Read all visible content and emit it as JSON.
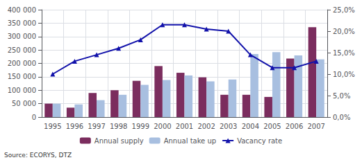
{
  "chart_data": {
    "type": "bar",
    "categories": [
      "1995",
      "1996",
      "1997",
      "1998",
      "1999",
      "2000",
      "2001",
      "2002",
      "2003",
      "2004",
      "2005",
      "2006",
      "2007"
    ],
    "series": [
      {
        "name": "Annual supply",
        "type": "bar",
        "color": "#7B2D5E",
        "values": [
          50000,
          35000,
          90000,
          100000,
          135000,
          190000,
          165000,
          148000,
          83000,
          83000,
          75000,
          218000,
          335000
        ]
      },
      {
        "name": "Annual take up",
        "type": "bar",
        "color": "#A8BFE0",
        "values": [
          50000,
          47000,
          63000,
          83000,
          120000,
          138000,
          155000,
          133000,
          140000,
          235000,
          242000,
          230000,
          215000
        ]
      },
      {
        "name": "Vacancy rate",
        "type": "line",
        "axis": "y2",
        "color": "#1111AA",
        "marker": "triangle",
        "values": [
          0.1,
          0.13,
          0.145,
          0.16,
          0.18,
          0.215,
          0.215,
          0.205,
          0.2,
          0.145,
          0.115,
          0.115,
          0.13
        ]
      }
    ],
    "ylim": [
      0,
      400000
    ],
    "yticks": [
      0,
      {
        "value": 50000,
        "label": "50 000"
      },
      {
        "value": 100000,
        "label": "100 000"
      },
      {
        "value": 150000,
        "label": "150 000"
      },
      {
        "value": 200000,
        "label": "200 000"
      },
      {
        "value": 250000,
        "label": "250 000"
      },
      {
        "value": 300000,
        "label": "300 000"
      },
      {
        "value": 350000,
        "label": "350 000"
      },
      {
        "value": 400000,
        "label": "400 000"
      }
    ],
    "y2lim": [
      0,
      0.25
    ],
    "y2ticks": [
      {
        "value": 0.0,
        "label": "0,0%"
      },
      {
        "value": 0.05,
        "label": "5,0%"
      },
      {
        "value": 0.1,
        "label": "10,0%"
      },
      {
        "value": 0.15,
        "label": "15,0%"
      },
      {
        "value": 0.2,
        "label": "20,0%"
      },
      {
        "value": 0.25,
        "label": "25,0%"
      }
    ],
    "grid": true,
    "legend": "bottom",
    "annotations": [
      "Source: ECORYS, DTZ"
    ]
  }
}
